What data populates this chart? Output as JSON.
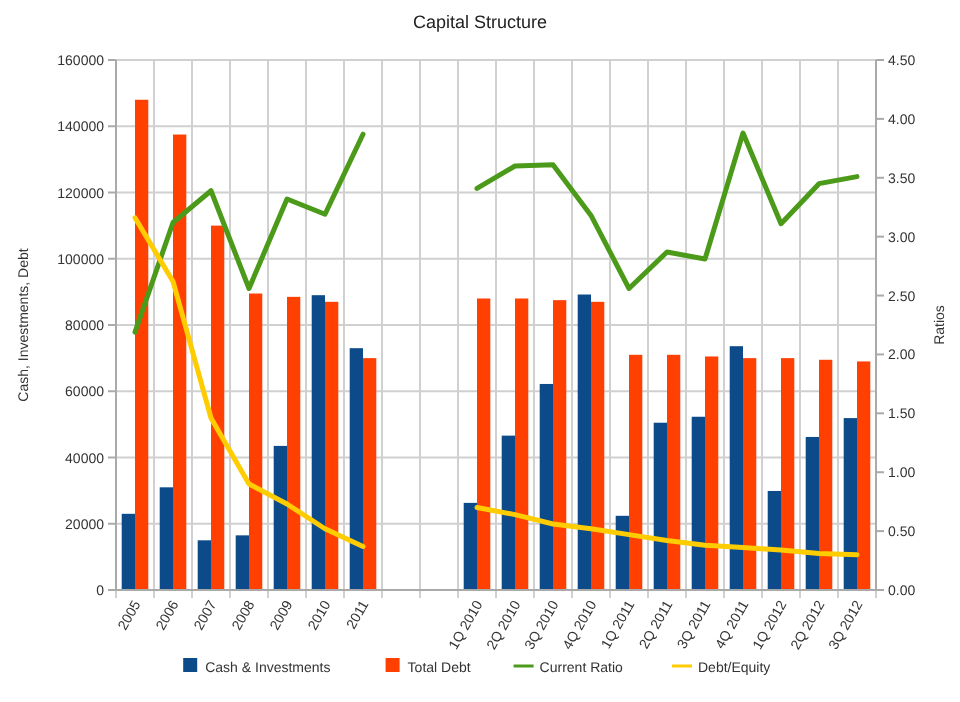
{
  "chart_data": {
    "type": "bar",
    "title": "Capital Structure",
    "ylabel": "Cash, Investments, Debt",
    "y2label": "Ratios",
    "categories": [
      "2005",
      "2006",
      "2007",
      "2008",
      "2009",
      "2010",
      "2011",
      null,
      null,
      "1Q 2010",
      "2Q 2010",
      "3Q 2010",
      "4Q 2010",
      "1Q 2011",
      "2Q 2011",
      "3Q 2011",
      "4Q 2011",
      "1Q 2012",
      "2Q 2012",
      "3Q 2012"
    ],
    "series": [
      {
        "name": "Cash & Investments",
        "color": "#0d4a8a",
        "values": [
          23000,
          31000,
          15000,
          16500,
          43500,
          89000,
          73000,
          null,
          null,
          26300,
          46600,
          62200,
          89200,
          22400,
          50500,
          52300,
          73600,
          29900,
          46200,
          51900
        ]
      },
      {
        "name": "Total Debt",
        "color": "#ff4000",
        "values": [
          148000,
          137500,
          110000,
          89500,
          88500,
          87000,
          70000,
          null,
          null,
          88000,
          88000,
          87500,
          87000,
          71000,
          71000,
          70500,
          70000,
          70000,
          69500,
          69000
        ]
      },
      {
        "name": "Current Ratio",
        "type": "line",
        "axis": "y2",
        "color": "#4c9a1a",
        "values": [
          2.19,
          3.12,
          3.39,
          2.56,
          3.32,
          3.19,
          3.87,
          null,
          null,
          3.41,
          3.6,
          3.61,
          3.18,
          2.56,
          2.87,
          2.81,
          3.88,
          3.11,
          3.45,
          3.51
        ]
      },
      {
        "name": "Debt/Equity",
        "type": "line",
        "axis": "y2",
        "color": "#ffcc00",
        "values": [
          3.16,
          2.62,
          1.46,
          0.9,
          0.73,
          0.52,
          0.37,
          null,
          null,
          0.7,
          0.64,
          0.56,
          0.52,
          0.47,
          0.42,
          0.38,
          0.36,
          0.34,
          0.31,
          0.3
        ]
      }
    ],
    "ylim": [
      0,
      160000
    ],
    "yticks": [
      0,
      20000,
      40000,
      60000,
      80000,
      100000,
      120000,
      140000,
      160000
    ],
    "y2lim": [
      0,
      4.5
    ],
    "y2ticks": [
      {
        "value": 0,
        "label": "0.00"
      },
      {
        "value": 0.5,
        "label": "0.50"
      },
      {
        "value": 1,
        "label": "1.00"
      },
      {
        "value": 1.5,
        "label": "1.50"
      },
      {
        "value": 2,
        "label": "2.00"
      },
      {
        "value": 2.5,
        "label": "2.50"
      },
      {
        "value": 3,
        "label": "3.00"
      },
      {
        "value": 3.5,
        "label": "3.50"
      },
      {
        "value": 4,
        "label": "4.00"
      },
      {
        "value": 4.5,
        "label": "4.50"
      }
    ],
    "grid": true,
    "legend": "bottom",
    "marker": "none",
    "line_style": "solid"
  }
}
